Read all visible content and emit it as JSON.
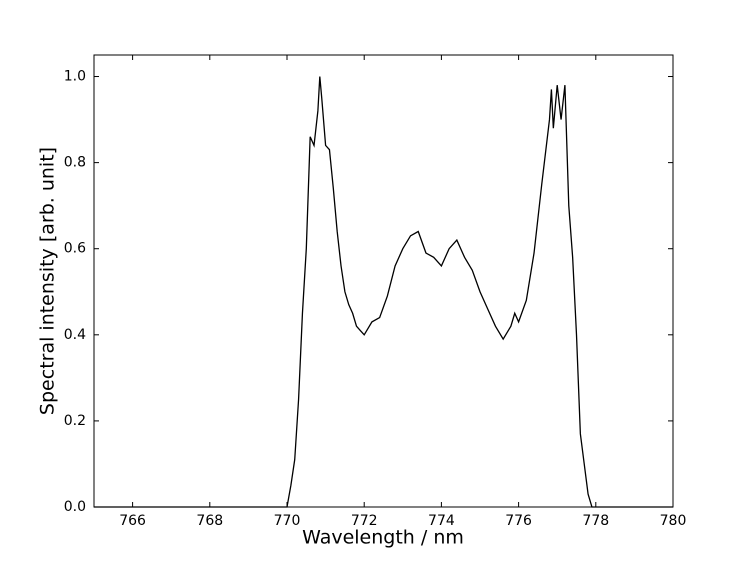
{
  "chart_data": {
    "type": "line",
    "x_label": "Wavelength / nm",
    "y_label": "Spectral intensity [arb. unit]",
    "x": [
      765,
      766,
      767,
      768,
      769,
      769.9,
      770.0,
      770.1,
      770.2,
      770.3,
      770.4,
      770.5,
      770.6,
      770.7,
      770.8,
      770.85,
      770.9,
      771.0,
      771.1,
      771.2,
      771.3,
      771.4,
      771.5,
      771.6,
      771.7,
      771.8,
      771.9,
      772.0,
      772.2,
      772.4,
      772.6,
      772.8,
      773.0,
      773.2,
      773.4,
      773.6,
      773.8,
      774.0,
      774.2,
      774.4,
      774.6,
      774.8,
      775.0,
      775.2,
      775.4,
      775.6,
      775.8,
      775.9,
      776.0,
      776.2,
      776.4,
      776.6,
      776.8,
      776.85,
      776.9,
      777.0,
      777.1,
      777.2,
      777.3,
      777.4,
      777.5,
      777.6,
      777.7,
      777.8,
      777.9,
      778.5,
      779,
      780
    ],
    "series": [
      {
        "color": "#000000",
        "values": [
          0,
          0,
          0,
          0,
          0,
          0,
          0.0,
          0.05,
          0.11,
          0.25,
          0.45,
          0.6,
          0.86,
          0.84,
          0.92,
          1.0,
          0.95,
          0.84,
          0.83,
          0.74,
          0.64,
          0.56,
          0.5,
          0.47,
          0.45,
          0.42,
          0.41,
          0.4,
          0.43,
          0.44,
          0.49,
          0.56,
          0.6,
          0.63,
          0.64,
          0.59,
          0.58,
          0.56,
          0.6,
          0.62,
          0.58,
          0.55,
          0.5,
          0.46,
          0.42,
          0.39,
          0.42,
          0.45,
          0.43,
          0.48,
          0.59,
          0.75,
          0.9,
          0.97,
          0.88,
          0.98,
          0.9,
          0.98,
          0.7,
          0.58,
          0.4,
          0.17,
          0.1,
          0.03,
          0.0,
          0,
          0,
          0
        ]
      }
    ],
    "xlim": [
      765,
      780
    ],
    "ylim": [
      0,
      1.05
    ],
    "xticks": [
      766,
      768,
      770,
      772,
      774,
      776,
      778,
      780
    ],
    "yticks": [
      {
        "value": 0,
        "label": "0.0"
      },
      0.2,
      0.4,
      0.6,
      0.8,
      {
        "value": 1,
        "label": "1.0"
      }
    ]
  }
}
